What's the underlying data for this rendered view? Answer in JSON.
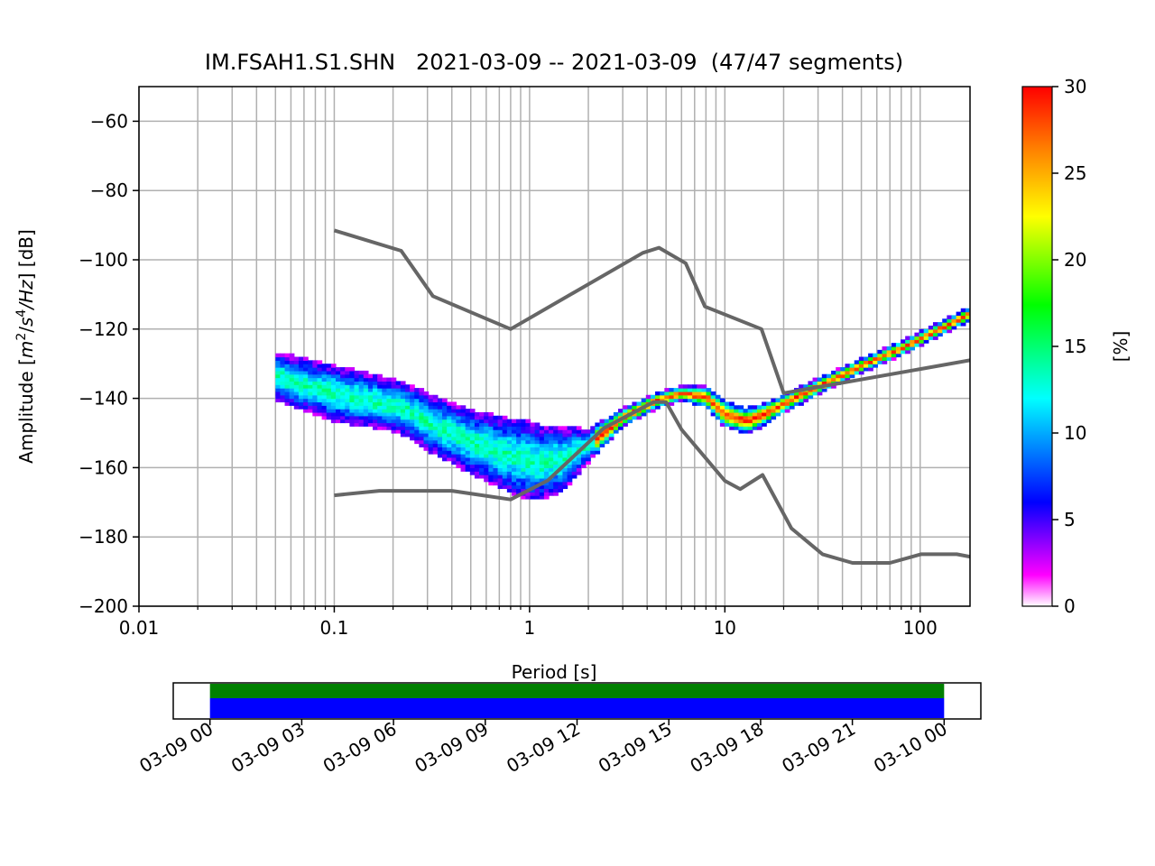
{
  "chart_data": {
    "type": "heatmap",
    "title": "IM.FSAH1.S1.SHN   2021-03-09 -- 2021-03-09  (47/47 segments)",
    "xlabel": "Period [s]",
    "ylabel": "Amplitude [m²/s⁴/Hz] [dB]",
    "ylabel_parts": {
      "prefix": "Amplitude [",
      "m": "m",
      "m_exp": "2",
      "slash1": "/",
      "s": "s",
      "s_exp": "4",
      "rest": "/Hz",
      "suffix": "] [dB]"
    },
    "x_scale": "log",
    "xlim": [
      0.01,
      180
    ],
    "ylim": [
      -200,
      -50
    ],
    "x_ticks": [
      0.01,
      0.1,
      1,
      10,
      100
    ],
    "x_tick_labels": [
      "0.01",
      "0.1",
      "1",
      "10",
      "100"
    ],
    "y_ticks": [
      -200,
      -180,
      -160,
      -140,
      -120,
      -100,
      -80,
      -60
    ],
    "y_tick_labels": [
      "−200",
      "−180",
      "−160",
      "−140",
      "−120",
      "−100",
      "−80",
      "−60"
    ],
    "grid": true,
    "colorbar": {
      "label": "[%]",
      "range": [
        0,
        30
      ],
      "ticks": [
        0,
        5,
        10,
        15,
        20,
        25,
        30
      ],
      "tick_labels": [
        "0",
        "5",
        "10",
        "15",
        "20",
        "25",
        "30"
      ],
      "colormap": "pqlx"
    },
    "high_noise_model": {
      "name": "NHNM",
      "color": "#666666",
      "points": [
        [
          0.1,
          -91.5
        ],
        [
          0.22,
          -97.4
        ],
        [
          0.32,
          -110.5
        ],
        [
          0.8,
          -120
        ],
        [
          3.8,
          -98
        ],
        [
          4.6,
          -96.5
        ],
        [
          6.3,
          -101
        ],
        [
          7.9,
          -113.5
        ],
        [
          15.4,
          -120
        ],
        [
          20,
          -138.5
        ],
        [
          180,
          -129
        ]
      ]
    },
    "low_noise_model": {
      "name": "NLNM",
      "color": "#666666",
      "points": [
        [
          0.1,
          -168
        ],
        [
          0.17,
          -166.7
        ],
        [
          0.4,
          -166.7
        ],
        [
          0.8,
          -169.2
        ],
        [
          1.24,
          -163.7
        ],
        [
          2.4,
          -148.6
        ],
        [
          4.3,
          -141.1
        ],
        [
          5.0,
          -141.1
        ],
        [
          6.0,
          -149.0
        ],
        [
          10.0,
          -163.8
        ],
        [
          12.0,
          -166.2
        ],
        [
          15.6,
          -162.1
        ],
        [
          21.9,
          -177.5
        ],
        [
          31.6,
          -185.0
        ],
        [
          45.0,
          -187.5
        ],
        [
          70.0,
          -187.5
        ],
        [
          101.0,
          -185.0
        ],
        [
          154.0,
          -185.0
        ],
        [
          180.0,
          -185.7
        ]
      ]
    },
    "psd_density": {
      "period_range": [
        0.05,
        180
      ],
      "ridge": [
        [
          0.05,
          -134
        ],
        [
          0.1,
          -139
        ],
        [
          0.15,
          -141
        ],
        [
          0.22,
          -143
        ],
        [
          0.32,
          -148
        ],
        [
          0.5,
          -153
        ],
        [
          0.8,
          -157
        ],
        [
          1.1,
          -159
        ],
        [
          1.5,
          -158
        ],
        [
          2.0,
          -154
        ],
        [
          3.0,
          -146
        ],
        [
          4.5,
          -141
        ],
        [
          6.0,
          -139
        ],
        [
          8.0,
          -140
        ],
        [
          10.0,
          -145
        ],
        [
          13.0,
          -147
        ],
        [
          16.0,
          -145
        ],
        [
          20.0,
          -142
        ],
        [
          30.0,
          -137
        ],
        [
          50.0,
          -131
        ],
        [
          80.0,
          -126
        ],
        [
          120.0,
          -121
        ],
        [
          180.0,
          -116
        ]
      ],
      "spread": [
        [
          0.05,
          12
        ],
        [
          0.1,
          14
        ],
        [
          0.2,
          13
        ],
        [
          0.5,
          16
        ],
        [
          1.0,
          20
        ],
        [
          1.5,
          16
        ],
        [
          2.0,
          8
        ],
        [
          3.0,
          4
        ],
        [
          6.0,
          3
        ],
        [
          10.0,
          6
        ],
        [
          13.0,
          6
        ],
        [
          20.0,
          4
        ],
        [
          50.0,
          3
        ],
        [
          180.0,
          3
        ]
      ]
    },
    "timeline": {
      "start_tick_label": "03-09 00",
      "tick_labels": [
        "03-09 00",
        "03-09 03",
        "03-09 06",
        "03-09 09",
        "03-09 12",
        "03-09 15",
        "03-09 18",
        "03-09 21",
        "03-10 00"
      ],
      "tick_hours": [
        0,
        3,
        6,
        9,
        12,
        15,
        18,
        21,
        24
      ],
      "range_hours": [
        -1.2,
        25.2
      ],
      "coverage_hours": [
        0,
        24
      ],
      "bar_colors": {
        "top": "#008000",
        "bottom": "#0000ff"
      }
    }
  }
}
